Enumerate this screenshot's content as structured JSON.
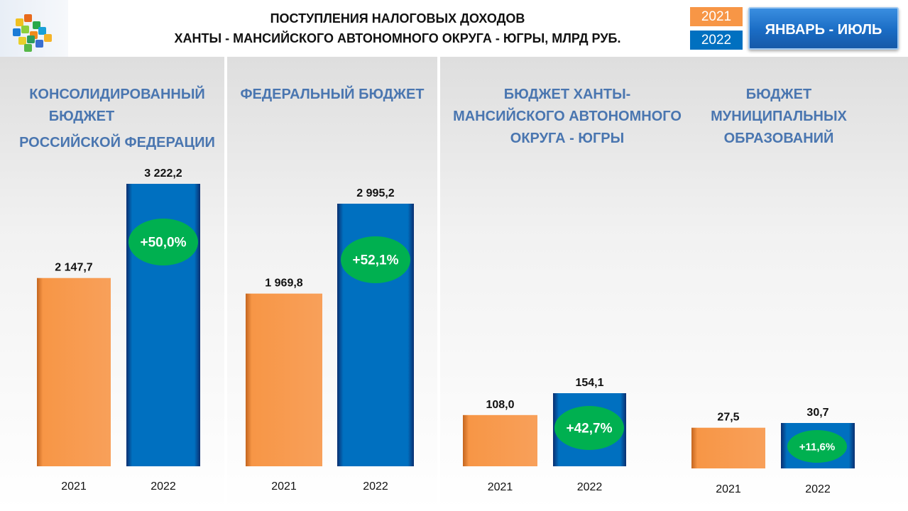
{
  "header": {
    "title_line1": "ПОСТУПЛЕНИЯ НАЛОГОВЫХ ДОХОДОВ",
    "title_line2": "ХАНТЫ - МАНСИЙСКОГО АВТОНОМНОГО ОКРУГА - ЮГРЫ, МЛРД  РУБ.",
    "period": "ЯНВАРЬ - ИЮЛЬ"
  },
  "legend": [
    {
      "label": "2021",
      "color": "#f79646"
    },
    {
      "label": "2022",
      "color": "#0070c0"
    }
  ],
  "colors": {
    "orange": "#f79646",
    "blue": "#0070c0",
    "green": "#00b050",
    "title_blue": "#4a76b0"
  },
  "chart_data": [
    {
      "type": "bar",
      "title_lines": [
        "КОНСОЛИДИРОВАННЫЙ",
        "БЮДЖЕТ",
        "РОССИЙСКОЙ ФЕДЕРАЦИИ"
      ],
      "categories": [
        "2021",
        "2022"
      ],
      "values": [
        2147.7,
        3222.2
      ],
      "value_labels": [
        "2 147,7",
        "3 222,2"
      ],
      "growth": "+50,0%"
    },
    {
      "type": "bar",
      "title_lines": [
        "ФЕДЕРАЛЬНЫЙ БЮДЖЕТ"
      ],
      "categories": [
        "2021",
        "2022"
      ],
      "values": [
        1969.8,
        2995.2
      ],
      "value_labels": [
        "1 969,8",
        "2 995,2"
      ],
      "growth": "+52,1%"
    },
    {
      "type": "bar",
      "title_lines": [
        "БЮДЖЕТ ХАНТЫ-",
        "МАНСИЙСКОГО АВТОНОМНОГО",
        "ОКРУГА - ЮГРЫ"
      ],
      "categories": [
        "2021",
        "2022"
      ],
      "values": [
        108.0,
        154.1
      ],
      "value_labels": [
        "108,0",
        "154,1"
      ],
      "growth": "+42,7%"
    },
    {
      "type": "bar",
      "title_lines": [
        "БЮДЖЕТ",
        "МУНИЦИПАЛЬНЫХ",
        "ОБРАЗОВАНИЙ"
      ],
      "categories": [
        "2021",
        "2022"
      ],
      "values": [
        27.5,
        30.7
      ],
      "value_labels": [
        "27,5",
        "30,7"
      ],
      "growth": "+11,6%"
    }
  ]
}
